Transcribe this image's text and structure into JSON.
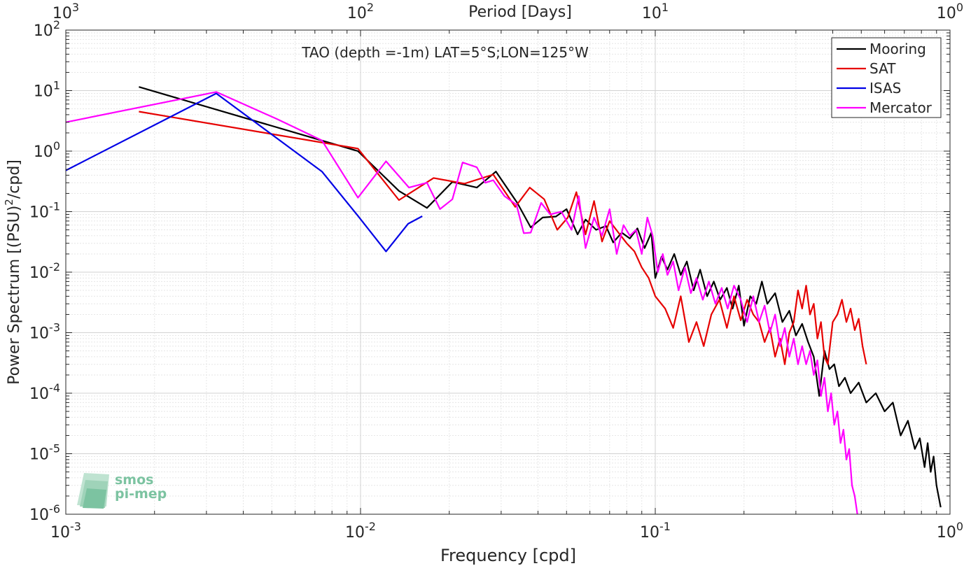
{
  "chart_data": {
    "type": "line",
    "title": "TAO (depth =-1m) LAT=5°S;LON=125°W",
    "xlabel": "Frequency [cpd]",
    "ylabel_main": "Power Spectrum [(PSU)",
    "ylabel_sup": "2",
    "ylabel_tail": "/cpd]",
    "top_xlabel": "Period [Days]",
    "xscale": "log",
    "yscale": "log",
    "xlim": [
      0.001,
      1
    ],
    "ylim": [
      1e-06,
      100
    ],
    "grid": true,
    "legend_position": "top-right",
    "x_ticks": [
      {
        "value": 0.001,
        "base": "10",
        "exp": "-3"
      },
      {
        "value": 0.01,
        "base": "10",
        "exp": "-2"
      },
      {
        "value": 0.1,
        "base": "10",
        "exp": "-1"
      },
      {
        "value": 1,
        "base": "10",
        "exp": "0"
      }
    ],
    "y_ticks": [
      {
        "value": 1e-06,
        "base": "10",
        "exp": "-6"
      },
      {
        "value": 1e-05,
        "base": "10",
        "exp": "-5"
      },
      {
        "value": 0.0001,
        "base": "10",
        "exp": "-4"
      },
      {
        "value": 0.001,
        "base": "10",
        "exp": "-3"
      },
      {
        "value": 0.01,
        "base": "10",
        "exp": "-2"
      },
      {
        "value": 0.1,
        "base": "10",
        "exp": "-1"
      },
      {
        "value": 1,
        "base": "10",
        "exp": "0"
      },
      {
        "value": 10,
        "base": "10",
        "exp": "1"
      },
      {
        "value": 100,
        "base": "10",
        "exp": "2"
      }
    ],
    "top_ticks": [
      {
        "value": 0.001,
        "base": "10",
        "exp": "3"
      },
      {
        "value": 0.01,
        "base": "10",
        "exp": "2"
      },
      {
        "value": 0.1,
        "base": "10",
        "exp": "1"
      },
      {
        "value": 1,
        "base": "10",
        "exp": "0"
      }
    ],
    "series": [
      {
        "name": "Mooring",
        "color": "#000000",
        "points": [
          [
            0.00177,
            11.5
          ],
          [
            0.0098,
            1.0
          ],
          [
            0.0135,
            0.22
          ],
          [
            0.0168,
            0.115
          ],
          [
            0.0205,
            0.31
          ],
          [
            0.0248,
            0.25
          ],
          [
            0.0288,
            0.46
          ],
          [
            0.034,
            0.14
          ],
          [
            0.0378,
            0.055
          ],
          [
            0.0415,
            0.08
          ],
          [
            0.046,
            0.083
          ],
          [
            0.05,
            0.11
          ],
          [
            0.0545,
            0.042
          ],
          [
            0.058,
            0.074
          ],
          [
            0.063,
            0.05
          ],
          [
            0.068,
            0.058
          ],
          [
            0.072,
            0.031
          ],
          [
            0.077,
            0.045
          ],
          [
            0.082,
            0.036
          ],
          [
            0.087,
            0.053
          ],
          [
            0.092,
            0.025
          ],
          [
            0.097,
            0.045
          ],
          [
            0.1,
            0.008
          ],
          [
            0.105,
            0.018
          ],
          [
            0.11,
            0.011
          ],
          [
            0.116,
            0.02
          ],
          [
            0.122,
            0.009
          ],
          [
            0.128,
            0.015
          ],
          [
            0.135,
            0.005
          ],
          [
            0.142,
            0.011
          ],
          [
            0.15,
            0.004
          ],
          [
            0.158,
            0.007
          ],
          [
            0.166,
            0.0035
          ],
          [
            0.175,
            0.0055
          ],
          [
            0.183,
            0.0025
          ],
          [
            0.192,
            0.006
          ],
          [
            0.2,
            0.0013
          ],
          [
            0.21,
            0.004
          ],
          [
            0.22,
            0.003
          ],
          [
            0.23,
            0.007
          ],
          [
            0.24,
            0.003
          ],
          [
            0.255,
            0.0045
          ],
          [
            0.27,
            0.0015
          ],
          [
            0.285,
            0.0023
          ],
          [
            0.3,
            0.0009
          ],
          [
            0.315,
            0.0014
          ],
          [
            0.33,
            0.0007
          ],
          [
            0.345,
            0.0004
          ],
          [
            0.36,
            9e-05
          ],
          [
            0.375,
            0.0005
          ],
          [
            0.39,
            0.00025
          ],
          [
            0.405,
            0.0003
          ],
          [
            0.42,
            0.00013
          ],
          [
            0.44,
            0.00018
          ],
          [
            0.46,
            0.0001
          ],
          [
            0.49,
            0.00015
          ],
          [
            0.52,
            7e-05
          ],
          [
            0.56,
            0.0001
          ],
          [
            0.6,
            5e-05
          ],
          [
            0.64,
            7e-05
          ],
          [
            0.68,
            2e-05
          ],
          [
            0.72,
            3.5e-05
          ],
          [
            0.76,
            1.2e-05
          ],
          [
            0.79,
            1.8e-05
          ],
          [
            0.82,
            6e-06
          ],
          [
            0.84,
            1.5e-05
          ],
          [
            0.86,
            5e-06
          ],
          [
            0.88,
            9e-06
          ],
          [
            0.9,
            3e-06
          ],
          [
            0.93,
            1.3e-06
          ]
        ]
      },
      {
        "name": "SAT",
        "color": "#e60000",
        "points": [
          [
            0.00177,
            4.5
          ],
          [
            0.0098,
            1.1
          ],
          [
            0.0135,
            0.155
          ],
          [
            0.0177,
            0.36
          ],
          [
            0.0225,
            0.29
          ],
          [
            0.0282,
            0.41
          ],
          [
            0.0335,
            0.12
          ],
          [
            0.0375,
            0.25
          ],
          [
            0.042,
            0.16
          ],
          [
            0.0465,
            0.05
          ],
          [
            0.0505,
            0.08
          ],
          [
            0.054,
            0.21
          ],
          [
            0.058,
            0.042
          ],
          [
            0.062,
            0.15
          ],
          [
            0.066,
            0.032
          ],
          [
            0.07,
            0.07
          ],
          [
            0.075,
            0.045
          ],
          [
            0.08,
            0.03
          ],
          [
            0.085,
            0.022
          ],
          [
            0.09,
            0.012
          ],
          [
            0.095,
            0.008
          ],
          [
            0.1,
            0.004
          ],
          [
            0.108,
            0.0025
          ],
          [
            0.115,
            0.0012
          ],
          [
            0.122,
            0.004
          ],
          [
            0.13,
            0.0007
          ],
          [
            0.138,
            0.0015
          ],
          [
            0.146,
            0.0006
          ],
          [
            0.155,
            0.002
          ],
          [
            0.165,
            0.0035
          ],
          [
            0.175,
            0.0012
          ],
          [
            0.185,
            0.004
          ],
          [
            0.195,
            0.0016
          ],
          [
            0.205,
            0.0035
          ],
          [
            0.215,
            0.002
          ],
          [
            0.225,
            0.0015
          ],
          [
            0.235,
            0.0007
          ],
          [
            0.245,
            0.0012
          ],
          [
            0.255,
            0.0004
          ],
          [
            0.265,
            0.0008
          ],
          [
            0.275,
            0.0003
          ],
          [
            0.285,
            0.001
          ],
          [
            0.295,
            0.0015
          ],
          [
            0.305,
            0.005
          ],
          [
            0.315,
            0.0025
          ],
          [
            0.325,
            0.006
          ],
          [
            0.335,
            0.002
          ],
          [
            0.345,
            0.003
          ],
          [
            0.355,
            0.0008
          ],
          [
            0.365,
            0.0015
          ],
          [
            0.375,
            0.0004
          ],
          [
            0.385,
            0.0003
          ],
          [
            0.4,
            0.0015
          ],
          [
            0.415,
            0.002
          ],
          [
            0.43,
            0.0035
          ],
          [
            0.445,
            0.0015
          ],
          [
            0.46,
            0.0025
          ],
          [
            0.475,
            0.0011
          ],
          [
            0.49,
            0.0017
          ],
          [
            0.505,
            0.0006
          ],
          [
            0.52,
            0.0003
          ]
        ]
      },
      {
        "name": "ISAS",
        "color": "#0000e6",
        "points": [
          [
            0.001,
            0.48
          ],
          [
            0.00324,
            9.0
          ],
          [
            0.0074,
            0.46
          ],
          [
            0.0098,
            0.085
          ],
          [
            0.0122,
            0.022
          ],
          [
            0.0145,
            0.063
          ],
          [
            0.0162,
            0.084
          ]
        ]
      },
      {
        "name": "Mercator",
        "color": "#ff00ff",
        "points": [
          [
            0.001,
            3.0
          ],
          [
            0.00324,
            9.5
          ],
          [
            0.0052,
            3.4
          ],
          [
            0.0074,
            1.5
          ],
          [
            0.0098,
            0.17
          ],
          [
            0.0122,
            0.68
          ],
          [
            0.0146,
            0.25
          ],
          [
            0.0168,
            0.3
          ],
          [
            0.0186,
            0.11
          ],
          [
            0.0205,
            0.16
          ],
          [
            0.0222,
            0.65
          ],
          [
            0.0248,
            0.54
          ],
          [
            0.0265,
            0.3
          ],
          [
            0.0282,
            0.33
          ],
          [
            0.0308,
            0.18
          ],
          [
            0.0338,
            0.13
          ],
          [
            0.0358,
            0.044
          ],
          [
            0.0378,
            0.045
          ],
          [
            0.041,
            0.14
          ],
          [
            0.044,
            0.09
          ],
          [
            0.048,
            0.1
          ],
          [
            0.052,
            0.05
          ],
          [
            0.055,
            0.18
          ],
          [
            0.058,
            0.025
          ],
          [
            0.062,
            0.08
          ],
          [
            0.066,
            0.04
          ],
          [
            0.07,
            0.11
          ],
          [
            0.074,
            0.02
          ],
          [
            0.078,
            0.06
          ],
          [
            0.082,
            0.04
          ],
          [
            0.086,
            0.05
          ],
          [
            0.09,
            0.02
          ],
          [
            0.094,
            0.08
          ],
          [
            0.098,
            0.04
          ],
          [
            0.102,
            0.01
          ],
          [
            0.106,
            0.02
          ],
          [
            0.11,
            0.009
          ],
          [
            0.115,
            0.015
          ],
          [
            0.12,
            0.005
          ],
          [
            0.126,
            0.012
          ],
          [
            0.132,
            0.0045
          ],
          [
            0.138,
            0.008
          ],
          [
            0.145,
            0.0035
          ],
          [
            0.152,
            0.007
          ],
          [
            0.16,
            0.003
          ],
          [
            0.168,
            0.0055
          ],
          [
            0.176,
            0.0025
          ],
          [
            0.185,
            0.006
          ],
          [
            0.195,
            0.0035
          ],
          [
            0.205,
            0.0015
          ],
          [
            0.215,
            0.004
          ],
          [
            0.225,
            0.0015
          ],
          [
            0.235,
            0.0028
          ],
          [
            0.245,
            0.001
          ],
          [
            0.255,
            0.002
          ],
          [
            0.265,
            0.0006
          ],
          [
            0.275,
            0.0012
          ],
          [
            0.285,
            0.0004
          ],
          [
            0.295,
            0.0008
          ],
          [
            0.305,
            0.0003
          ],
          [
            0.315,
            0.0006
          ],
          [
            0.325,
            0.0003
          ],
          [
            0.335,
            0.0005
          ],
          [
            0.345,
            0.0002
          ],
          [
            0.355,
            0.00035
          ],
          [
            0.365,
            9e-05
          ],
          [
            0.375,
            0.00018
          ],
          [
            0.385,
            5e-05
          ],
          [
            0.395,
            0.0001
          ],
          [
            0.405,
            3e-05
          ],
          [
            0.415,
            5e-05
          ],
          [
            0.425,
            1.5e-05
          ],
          [
            0.435,
            2.5e-05
          ],
          [
            0.445,
            8e-06
          ],
          [
            0.455,
            1.2e-05
          ],
          [
            0.465,
            3e-06
          ],
          [
            0.475,
            2e-06
          ],
          [
            0.485,
            1e-06
          ]
        ]
      }
    ]
  },
  "watermark": {
    "line1": "smos",
    "line2": "pi-mep"
  }
}
